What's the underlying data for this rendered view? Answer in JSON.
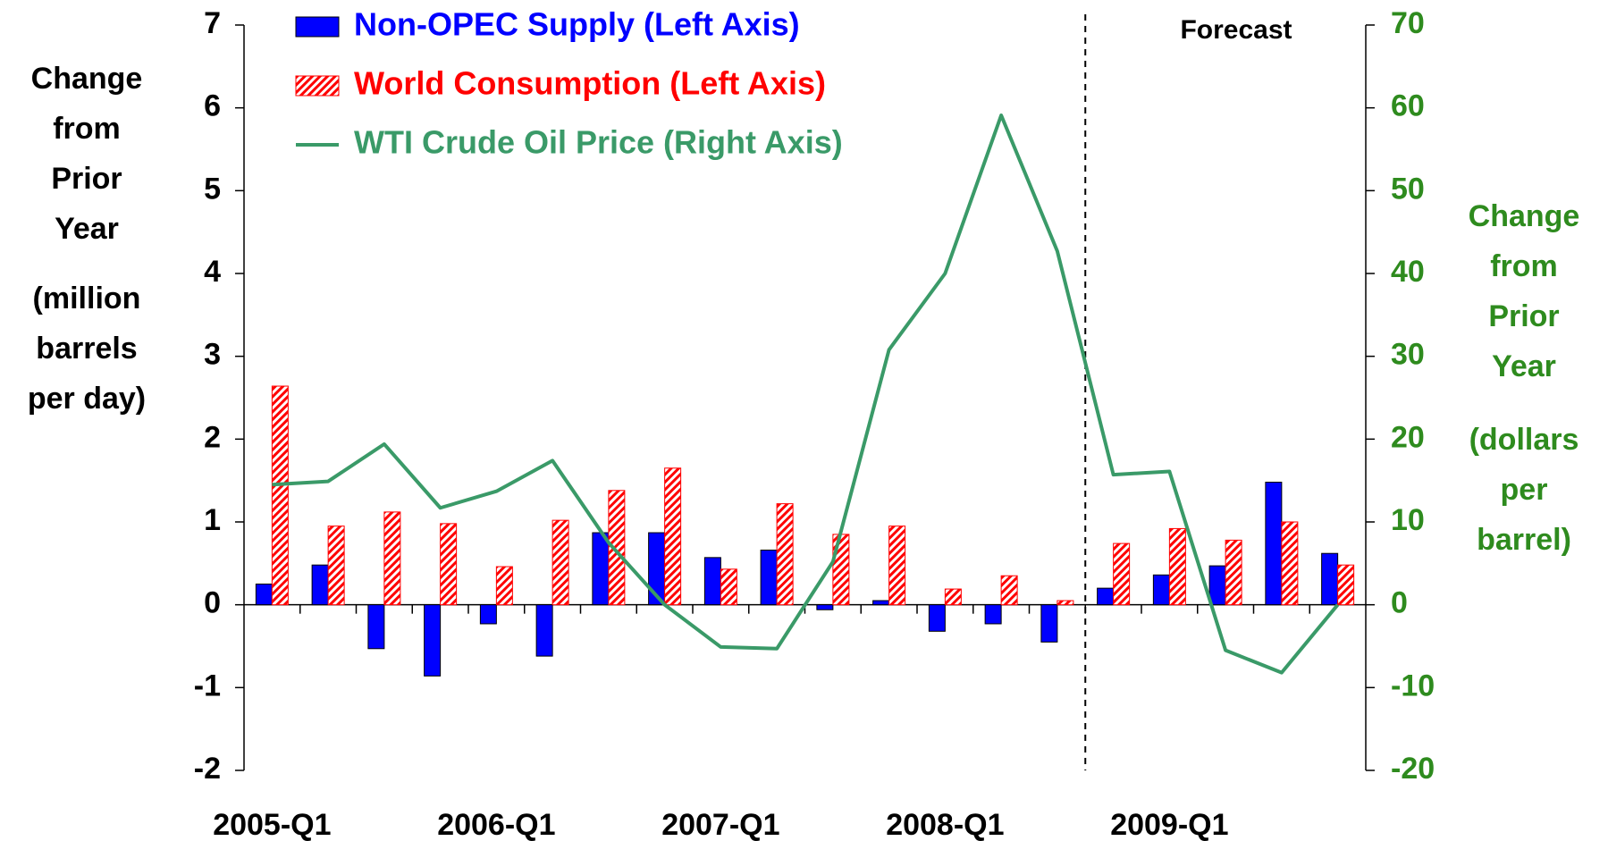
{
  "chart_data": {
    "type": "bar",
    "y_label": [
      "Change",
      "from",
      "Prior",
      "Year",
      "(million",
      "barrels",
      "per day)"
    ],
    "y2_label": [
      "Change",
      "from",
      "Prior",
      "Year",
      "(dollars",
      "per",
      "barrel)"
    ],
    "annotation": "Forecast",
    "categories": [
      "2005-Q1",
      null,
      null,
      null,
      "2006-Q1",
      null,
      null,
      null,
      "2007-Q1",
      null,
      null,
      null,
      "2008-Q1",
      null,
      null,
      null,
      "2009-Q1",
      null,
      null,
      null
    ],
    "series": [
      {
        "name": "Non-OPEC Supply (Left Axis)",
        "color": "#0000ff",
        "type": "bar",
        "values": [
          0.25,
          0.48,
          -0.53,
          -0.86,
          -0.23,
          -0.62,
          0.87,
          0.87,
          0.57,
          0.66,
          -0.06,
          0.05,
          -0.32,
          -0.23,
          -0.45,
          0.2,
          0.36,
          0.47,
          1.48,
          0.62
        ]
      },
      {
        "name": "World Consumption (Left Axis)",
        "color": "#ff0000",
        "type": "bar",
        "pattern": "hatch",
        "values": [
          2.64,
          0.95,
          1.12,
          0.98,
          0.46,
          1.02,
          1.38,
          1.65,
          0.43,
          1.22,
          0.85,
          0.95,
          0.19,
          0.35,
          0.05,
          0.74,
          0.92,
          0.78,
          1.0,
          0.48
        ]
      },
      {
        "name": "WTI Crude Oil Price (Right Axis)",
        "color": "#3a9a68",
        "type": "line",
        "axis": "y2",
        "values": [
          14.5,
          14.9,
          19.4,
          11.7,
          13.7,
          17.4,
          7.5,
          0,
          -5.1,
          -5.3,
          5.2,
          30.8,
          40,
          59.1,
          42.7,
          15.7,
          16.1,
          -5.5,
          -8.2,
          0
        ]
      }
    ],
    "ylim": [
      -2,
      7
    ],
    "yticks": [
      -2,
      -1,
      0,
      1,
      2,
      3,
      4,
      5,
      6,
      7
    ],
    "y2lim": [
      -20,
      70
    ],
    "y2ticks": [
      -20,
      -10,
      0,
      10,
      20,
      30,
      40,
      50,
      60,
      70
    ],
    "y2_color": "#2e8b1e"
  }
}
